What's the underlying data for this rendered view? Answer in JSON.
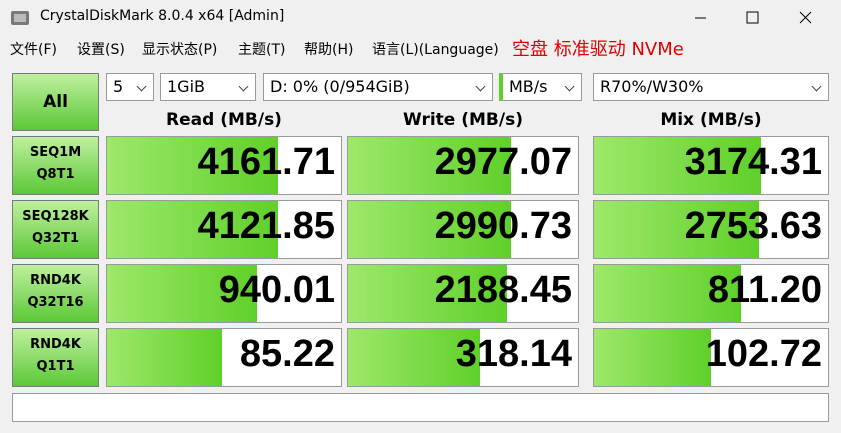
{
  "window": {
    "title": "CrystalDiskMark 8.0.4 x64 [Admin]"
  },
  "menu": [
    "文件(F)",
    "设置(S)",
    "显示状态(P)",
    "主题(T)",
    "帮助(H)",
    "语言(L)(Language)"
  ],
  "banner": "空盘 标准驱动 NVMe",
  "controls": {
    "all_button": "All",
    "count": "5",
    "size": "1GiB",
    "drive": "D: 0% (0/954GiB)",
    "unit": "MB/s",
    "mix": "R70%/W30%"
  },
  "headers": [
    "Read (MB/s)",
    "Write (MB/s)",
    "Mix (MB/s)"
  ],
  "rows": [
    {
      "label": [
        "SEQ1M",
        "Q8T1"
      ],
      "values": [
        "4161.71",
        "2977.07",
        "3174.31"
      ]
    },
    {
      "label": [
        "SEQ128K",
        "Q32T1"
      ],
      "values": [
        "4121.85",
        "2990.73",
        "2753.63"
      ]
    },
    {
      "label": [
        "RND4K",
        "Q32T16"
      ],
      "values": [
        "940.01",
        "2188.45",
        "811.20"
      ]
    },
    {
      "label": [
        "RND4K",
        "Q1T1"
      ],
      "values": [
        "85.22",
        "318.14",
        "102.72"
      ]
    }
  ]
}
